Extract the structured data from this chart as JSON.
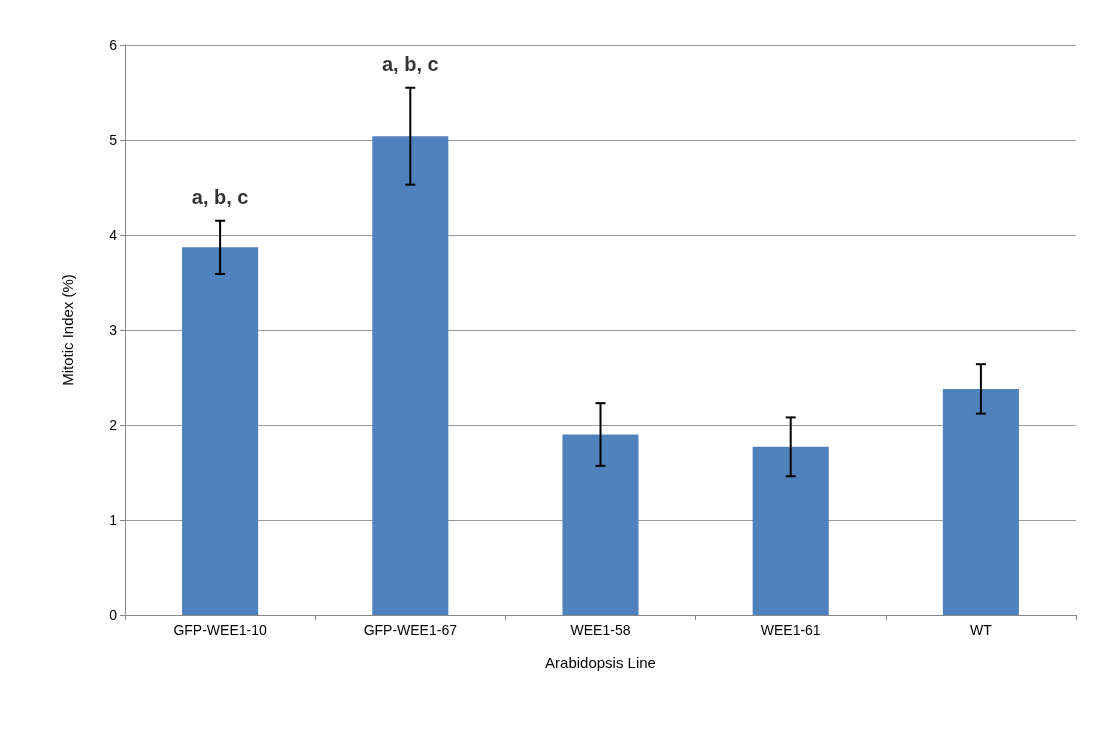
{
  "chart_data": {
    "type": "bar",
    "xlabel": "Arabidopsis Line",
    "ylabel": "Mitotic Index (%)",
    "categories": [
      "GFP-WEE1-10",
      "GFP-WEE1-67",
      "WEE1-58",
      "WEE1-61",
      "WT"
    ],
    "values": [
      3.87,
      5.04,
      1.9,
      1.77,
      2.38
    ],
    "errors": [
      0.28,
      0.51,
      0.33,
      0.31,
      0.26
    ],
    "color": "#4f81bd",
    "ylim": [
      0,
      6
    ],
    "yticks": [
      0,
      1,
      2,
      3,
      4,
      5,
      6
    ],
    "grid": "y",
    "annotations": [
      "a, b, c",
      "a, b, c"
    ]
  }
}
